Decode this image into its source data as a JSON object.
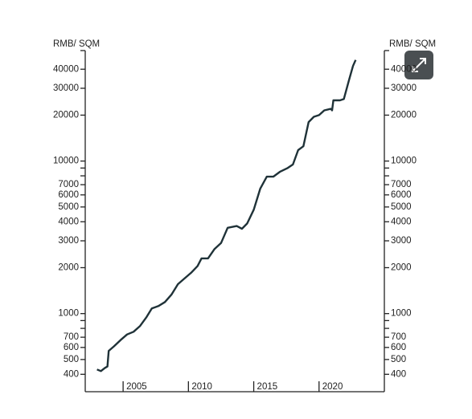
{
  "chart_data": {
    "type": "line",
    "y_label": "RMB/ SQM",
    "y2_label": "RMB/ SQM",
    "log_y": true,
    "color": "#1f3238",
    "xlim": [
      2002.1,
      2025
    ],
    "xticks": [
      2005,
      2010,
      2015,
      2020
    ],
    "ylim": [
      360,
      53000
    ],
    "yticks": [
      400,
      500,
      600,
      700,
      1000,
      2000,
      3000,
      4000,
      5000,
      6000,
      7000,
      10000,
      20000,
      30000,
      40000
    ],
    "yminorticks": [
      800,
      900,
      8000,
      9000
    ],
    "x": [
      2003.0,
      2003.3,
      2003.6,
      2003.8,
      2003.9,
      2004.3,
      2004.8,
      2005.3,
      2005.8,
      2006.3,
      2006.8,
      2007.2,
      2007.7,
      2008.2,
      2008.7,
      2009.2,
      2009.7,
      2010.2,
      2010.7,
      2011.0,
      2011.5,
      2012.0,
      2012.5,
      2013.0,
      2013.7,
      2014.1,
      2014.5,
      2015.0,
      2015.5,
      2016.0,
      2016.5,
      2017.0,
      2017.6,
      2018.0,
      2018.4,
      2018.8,
      2019.2,
      2019.6,
      2020.0,
      2020.4,
      2020.9,
      2021.0,
      2021.1,
      2021.6,
      2021.9,
      2022.3,
      2022.6,
      2022.8
    ],
    "values": [
      430,
      420,
      440,
      450,
      570,
      610,
      670,
      730,
      760,
      830,
      950,
      1080,
      1120,
      1190,
      1330,
      1560,
      1700,
      1850,
      2050,
      2300,
      2300,
      2650,
      2900,
      3650,
      3750,
      3600,
      3900,
      4800,
      6600,
      7900,
      7900,
      8500,
      9000,
      9500,
      11800,
      12500,
      18000,
      19500,
      20000,
      21500,
      22000,
      21500,
      25000,
      25000,
      25500,
      34000,
      42000,
      46000
    ]
  }
}
